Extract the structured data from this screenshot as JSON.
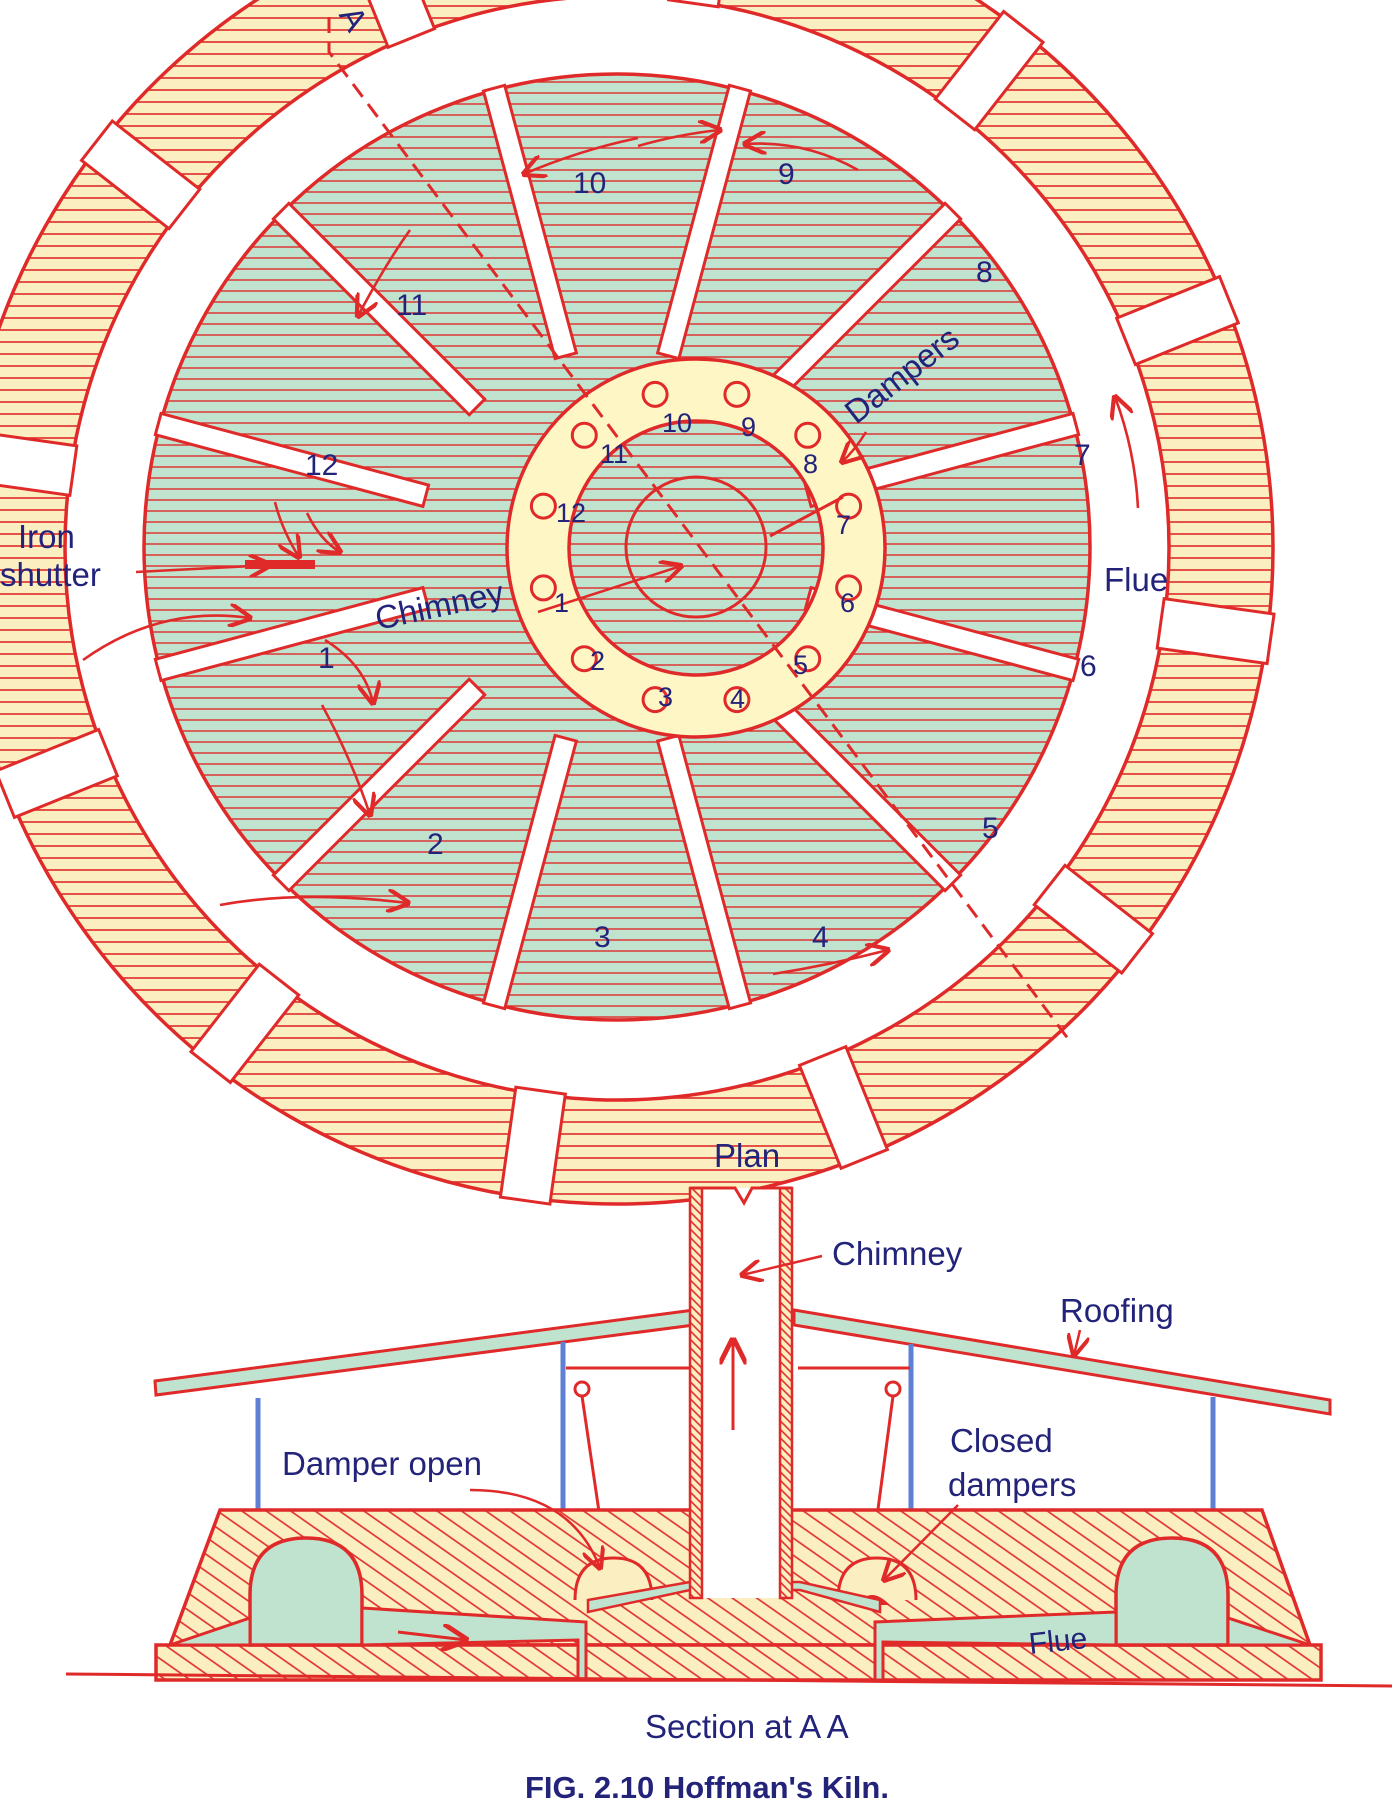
{
  "colors": {
    "outline": "#e02a2a",
    "wall_fill": "#fbefc2",
    "chamber_fill": "#bfe3cf",
    "ring_fill": "#fff6c6",
    "label": "#23237a",
    "post": "#5e7fd3"
  },
  "plan": {
    "section_marker": "A",
    "chamber_numbers": [
      "1",
      "2",
      "3",
      "4",
      "5",
      "6",
      "7",
      "8",
      "9",
      "10",
      "11",
      "12"
    ],
    "damper_numbers": [
      "1",
      "2",
      "3",
      "4",
      "5",
      "6",
      "7",
      "8",
      "9",
      "10",
      "11",
      "12"
    ],
    "labels": {
      "iron_shutter_line1": "Iron",
      "iron_shutter_line2": "shutter",
      "chimney": "Chimney",
      "dampers": "Dampers",
      "flue": "Flue"
    },
    "title": "Plan"
  },
  "section": {
    "labels": {
      "chimney": "Chimney",
      "roofing": "Roofing",
      "damper_open": "Damper open",
      "closed_dampers_line1": "Closed",
      "closed_dampers_line2": "dampers",
      "flue": "Flue"
    },
    "title": "Section at A A"
  },
  "caption": "FIG. 2.10 Hoffman's Kiln."
}
